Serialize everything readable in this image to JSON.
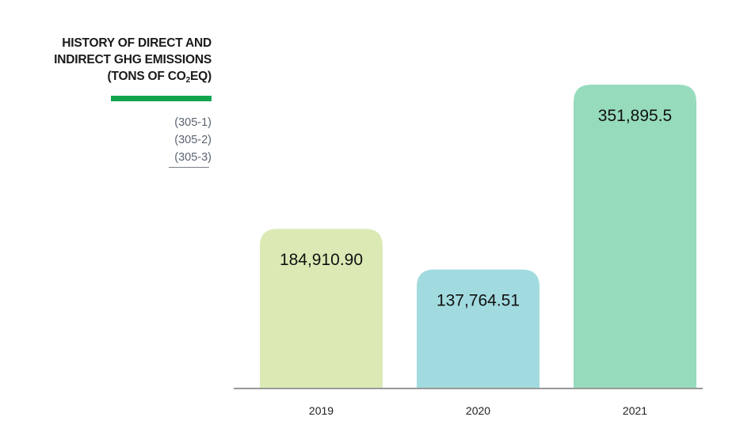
{
  "header": {
    "title_line1": "HISTORY OF DIRECT AND",
    "title_line2": "INDIRECT GHG EMISSIONS",
    "title_line3_prefix": "(TONS OF CO",
    "title_line3_sub": "2",
    "title_line3_suffix": "EQ)",
    "accent_color": "#12a550"
  },
  "references": [
    "(305-1)",
    "(305-2)",
    "(305-3)"
  ],
  "chart_data": {
    "type": "bar",
    "title": "HISTORY OF DIRECT AND INDIRECT GHG EMISSIONS (TONS OF CO2EQ)",
    "categories": [
      "2019",
      "2020",
      "2021"
    ],
    "values": [
      184910.9,
      137764.51,
      351895.5
    ],
    "data_labels": [
      "184,910.90",
      "137,764.51",
      "351,895.5"
    ],
    "colors": [
      "#dbeab5",
      "#a2dbdf",
      "#96dbbc"
    ],
    "axis_color": "#999999",
    "ylim": [
      0,
      351895.5
    ],
    "grid": false,
    "legend": "none"
  }
}
